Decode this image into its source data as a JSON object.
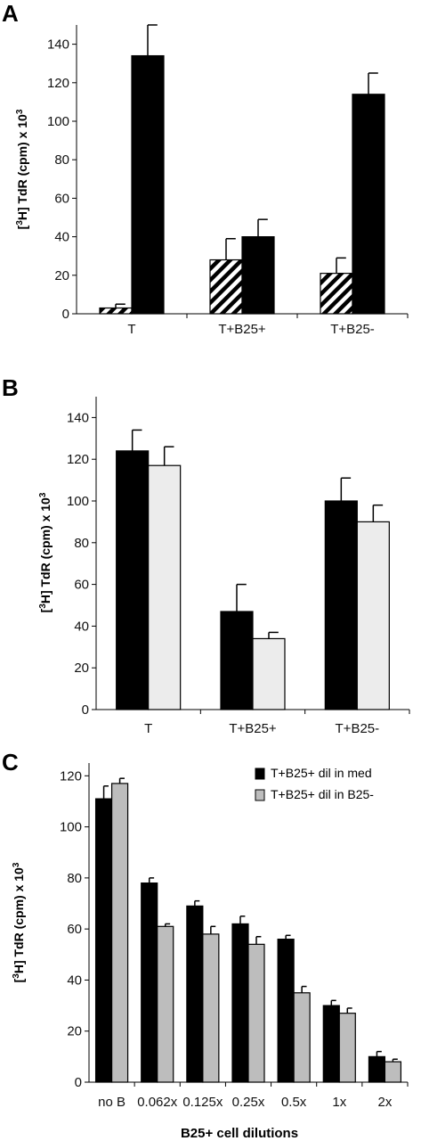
{
  "chart_data": [
    {
      "panel": "A",
      "type": "bar",
      "categories": [
        "T",
        "T+B25+",
        "T+B25-"
      ],
      "series": [
        {
          "style": "hatched",
          "values": [
            3,
            28,
            21
          ],
          "errors": [
            2,
            11,
            8
          ]
        },
        {
          "style": "solid-black",
          "values": [
            134,
            40,
            114
          ],
          "errors": [
            16,
            9,
            11
          ]
        }
      ],
      "ylabel": "[3H] TdR (cpm) x 103",
      "yticks": [
        "0",
        "20",
        "40",
        "60",
        "80",
        "100",
        "120",
        "140"
      ],
      "ylim": [
        0,
        150
      ],
      "grid": false
    },
    {
      "panel": "B",
      "type": "bar",
      "categories": [
        "T",
        "T+B25+",
        "T+B25-"
      ],
      "series": [
        {
          "style": "solid-black",
          "values": [
            124,
            47,
            100
          ],
          "errors": [
            10,
            13,
            11
          ]
        },
        {
          "style": "light-gray",
          "values": [
            117,
            34,
            90
          ],
          "errors": [
            9,
            3,
            8
          ]
        }
      ],
      "ylabel": "[3H] TdR (cpm) x 103",
      "yticks": [
        "0",
        "20",
        "40",
        "60",
        "80",
        "100",
        "120",
        "140"
      ],
      "ylim": [
        0,
        150
      ],
      "grid": false
    },
    {
      "panel": "C",
      "type": "bar",
      "categories": [
        "no B",
        "0.062x",
        "0.125x",
        "0.25x",
        "0.5x",
        "1x",
        "2x"
      ],
      "series": [
        {
          "name": "T+B25+ dil in med",
          "style": "solid-black",
          "values": [
            111,
            78,
            69,
            62,
            56,
            30,
            10
          ],
          "errors": [
            5,
            2,
            2,
            3,
            1.5,
            2,
            2
          ]
        },
        {
          "name": "T+B25+ dil in B25-",
          "style": "gray",
          "values": [
            117,
            61,
            58,
            54,
            35,
            27,
            8
          ],
          "errors": [
            2,
            1,
            3,
            3,
            2.5,
            2,
            1
          ]
        }
      ],
      "ylabel": "[3H] TdR (cpm) x 103",
      "xlabel": "B25+ cell dilutions",
      "yticks": [
        "0",
        "20",
        "40",
        "60",
        "80",
        "100",
        "120"
      ],
      "ylim": [
        0,
        125
      ],
      "legend": "top-right",
      "grid": false
    }
  ],
  "colors": {
    "black": "#000000",
    "light_gray": "#ececec",
    "gray": "#bdbdbd"
  }
}
